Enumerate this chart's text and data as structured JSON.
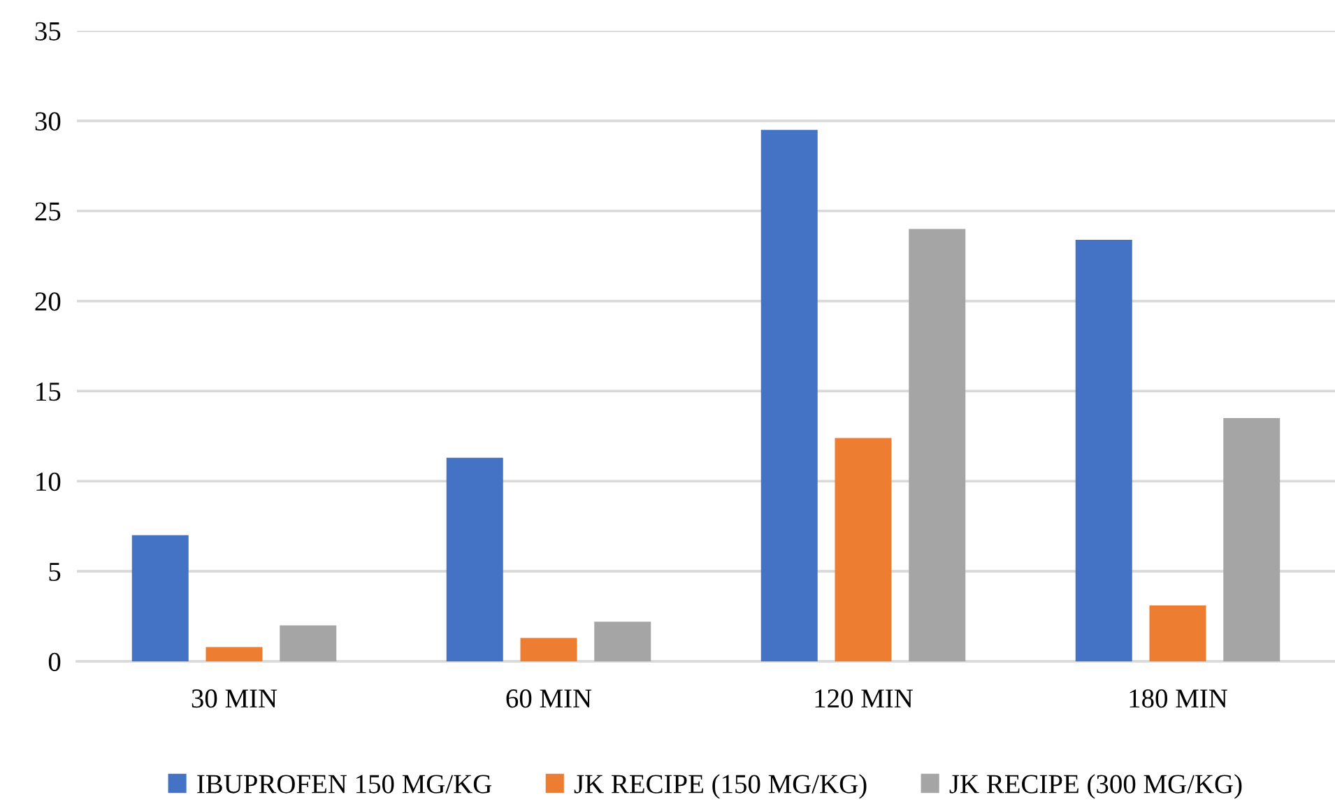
{
  "chart_data": {
    "type": "bar",
    "categories": [
      "30 MIN",
      "60 MIN",
      "120 MIN",
      "180 MIN"
    ],
    "series": [
      {
        "name": "IBUPROFEN 150 MG/KG",
        "color": "#4472c4",
        "values": [
          7.0,
          11.3,
          29.5,
          23.4
        ]
      },
      {
        "name": "JK RECIPE (150 MG/KG)",
        "color": "#ed7d31",
        "values": [
          0.8,
          1.3,
          12.4,
          3.1
        ]
      },
      {
        "name": "JK RECIPE (300 MG/KG)",
        "color": "#a5a5a5",
        "values": [
          2.0,
          2.2,
          24.0,
          13.5
        ]
      }
    ],
    "ylim": [
      0,
      35
    ],
    "yticks": [
      0,
      5,
      10,
      15,
      20,
      25,
      30,
      35
    ],
    "grid": "y",
    "legend": "bottom"
  }
}
